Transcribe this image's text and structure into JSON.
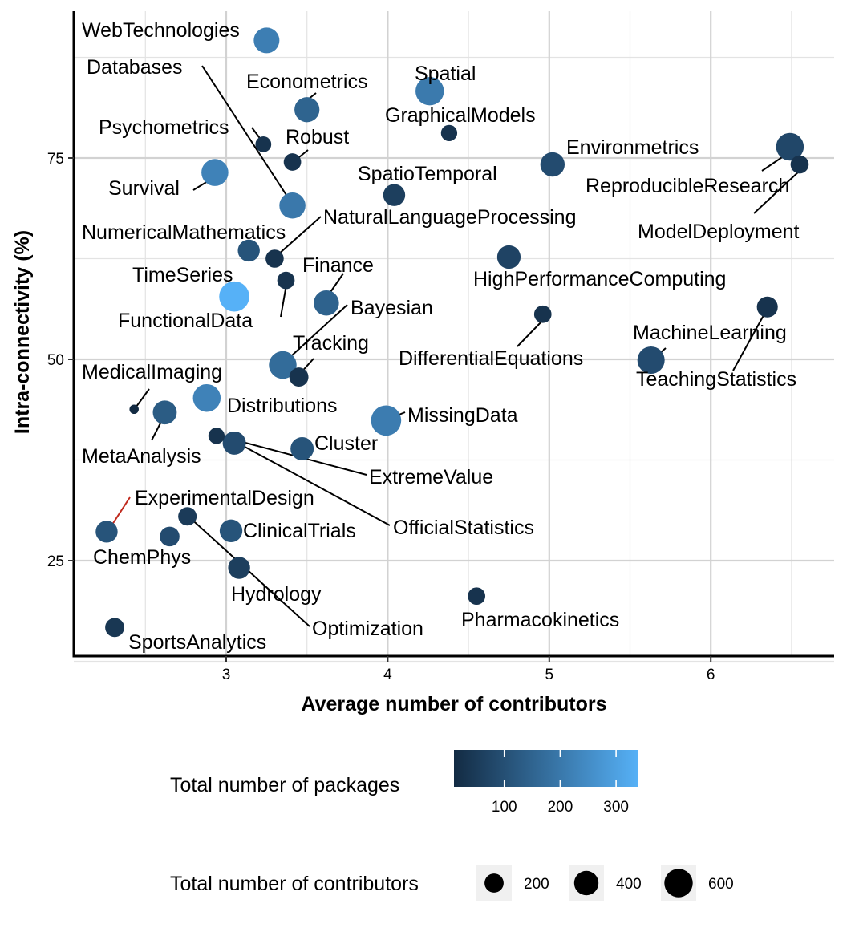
{
  "chart_data": {
    "type": "scatter",
    "xlabel": "Average number of contributors",
    "ylabel": "Intra-connectivity (%)",
    "xlim": [
      2.05,
      7.75
    ],
    "ylim": [
      13.5,
      93.5
    ],
    "x_ticks": [
      3,
      4,
      5,
      6
    ],
    "y_ticks": [
      25,
      50,
      75
    ],
    "grid": true,
    "highlight_color": "#c0291d",
    "color_scale": {
      "title": "Total number of packages",
      "low_color": "#132b43",
      "high_color": "#56b1f7",
      "min": 10,
      "max": 340,
      "ticks": [
        100,
        200,
        300
      ]
    },
    "size_scale": {
      "title": "Total number of contributors",
      "ticks": [
        200,
        400,
        600
      ]
    },
    "points": [
      {
        "label": "WebTechnologies",
        "x": 3.25,
        "y": 89.6,
        "contributors": 460,
        "packages": 215
      },
      {
        "label": "Databases",
        "x": 3.41,
        "y": 69.1,
        "contributors": 480,
        "packages": 200
      },
      {
        "label": "Econometrics",
        "x": 3.5,
        "y": 81.0,
        "contributors": 430,
        "packages": 150
      },
      {
        "label": "Spatial",
        "x": 4.26,
        "y": 83.3,
        "contributors": 600,
        "packages": 205
      },
      {
        "label": "GraphicalModels",
        "x": 4.38,
        "y": 78.1,
        "contributors": 120,
        "packages": 30
      },
      {
        "label": "Psychometrics",
        "x": 3.23,
        "y": 76.7,
        "contributors": 110,
        "packages": 30
      },
      {
        "label": "Robust",
        "x": 3.41,
        "y": 74.5,
        "contributors": 150,
        "packages": 30
      },
      {
        "label": "Environmetrics",
        "x": 5.02,
        "y": 74.2,
        "contributors": 400,
        "packages": 90
      },
      {
        "label": "ReproducibleResearch",
        "x": 6.49,
        "y": 76.4,
        "contributors": 560,
        "packages": 80
      },
      {
        "label": "ModelDeployment",
        "x": 6.55,
        "y": 74.2,
        "contributors": 170,
        "packages": 30
      },
      {
        "label": "Survival",
        "x": 2.93,
        "y": 73.2,
        "contributors": 520,
        "packages": 225
      },
      {
        "label": "SpatioTemporal",
        "x": 4.04,
        "y": 70.4,
        "contributors": 300,
        "packages": 60
      },
      {
        "label": "NaturalLanguageProcessing",
        "x": 3.3,
        "y": 62.5,
        "contributors": 170,
        "packages": 30
      },
      {
        "label": "NumericalMathematics",
        "x": 3.14,
        "y": 63.5,
        "contributors": 300,
        "packages": 110
      },
      {
        "label": "HighPerformanceComputing",
        "x": 4.75,
        "y": 62.7,
        "contributors": 360,
        "packages": 70
      },
      {
        "label": "Finance",
        "x": 3.62,
        "y": 57.0,
        "contributors": 440,
        "packages": 145
      },
      {
        "label": "TimeSeries",
        "x": 3.05,
        "y": 57.8,
        "contributors": 700,
        "packages": 340
      },
      {
        "label": "FunctionalData",
        "x": 3.37,
        "y": 59.8,
        "contributors": 150,
        "packages": 30
      },
      {
        "label": "Bayesian",
        "x": 3.35,
        "y": 49.3,
        "contributors": 560,
        "packages": 170
      },
      {
        "label": "DifferentialEquations",
        "x": 4.96,
        "y": 55.6,
        "contributors": 150,
        "packages": 30
      },
      {
        "label": "MachineLearning",
        "x": 5.63,
        "y": 49.9,
        "contributors": 540,
        "packages": 90
      },
      {
        "label": "TeachingStatistics",
        "x": 6.35,
        "y": 56.5,
        "contributors": 260,
        "packages": 30
      },
      {
        "label": "Tracking",
        "x": 3.45,
        "y": 47.8,
        "contributors": 200,
        "packages": 30
      },
      {
        "label": "MedicalImaging",
        "x": 2.43,
        "y": 43.8,
        "contributors": 10,
        "packages": 10
      },
      {
        "label": "Distributions",
        "x": 2.88,
        "y": 45.2,
        "contributors": 560,
        "packages": 225
      },
      {
        "label": "MetaAnalysis",
        "x": 2.62,
        "y": 43.4,
        "contributors": 380,
        "packages": 130
      },
      {
        "label": "MissingData",
        "x": 3.99,
        "y": 42.4,
        "contributors": 700,
        "packages": 210
      },
      {
        "label": "Cluster",
        "x": 3.47,
        "y": 38.9,
        "contributors": 350,
        "packages": 110
      },
      {
        "label": "ExtremeValue",
        "x": 2.94,
        "y": 40.5,
        "contributors": 120,
        "packages": 30
      },
      {
        "label": "OfficialStatistics",
        "x": 3.05,
        "y": 39.6,
        "contributors": 350,
        "packages": 90
      },
      {
        "label": "ExperimentalDesign",
        "x": 2.26,
        "y": 28.6,
        "contributors": 300,
        "packages": 110
      },
      {
        "label": "ChemPhys",
        "x": 2.65,
        "y": 28.0,
        "contributors": 220,
        "packages": 90
      },
      {
        "label": "ClinicalTrials",
        "x": 3.03,
        "y": 28.7,
        "contributors": 330,
        "packages": 110
      },
      {
        "label": "Hydrology",
        "x": 3.08,
        "y": 24.1,
        "contributors": 300,
        "packages": 60
      },
      {
        "label": "Optimization",
        "x": 2.76,
        "y": 30.5,
        "contributors": 180,
        "packages": 50
      },
      {
        "label": "Pharmacokinetics",
        "x": 4.55,
        "y": 20.6,
        "contributors": 150,
        "packages": 30
      },
      {
        "label": "SportsAnalytics",
        "x": 2.31,
        "y": 16.7,
        "contributors": 200,
        "packages": 40
      }
    ]
  }
}
